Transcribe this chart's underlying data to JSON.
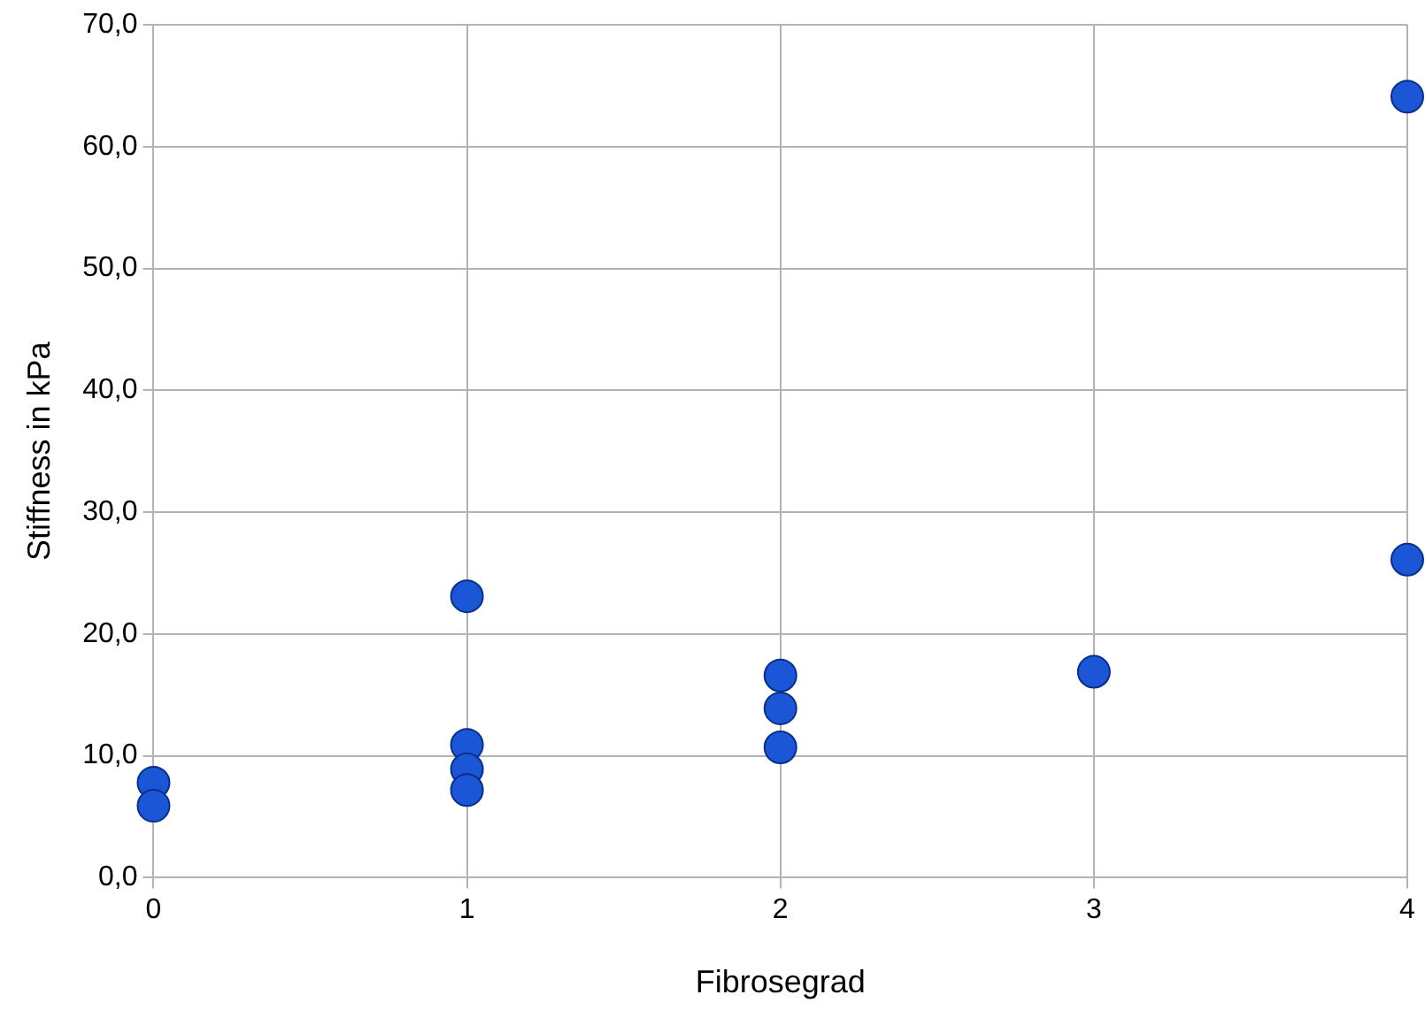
{
  "chart_data": {
    "type": "scatter",
    "xlabel": "Fibrosegrad",
    "ylabel": "Stiffness in kPa",
    "series": [
      {
        "color": "#1a56d6",
        "x": [
          0,
          0,
          1,
          1,
          1,
          1,
          2,
          2,
          2,
          3,
          4,
          4
        ],
        "values": [
          7.8,
          5.9,
          23.1,
          10.9,
          8.9,
          7.2,
          16.6,
          13.9,
          10.7,
          16.9,
          64.1,
          26.1
        ]
      }
    ],
    "xlim": [
      0,
      4
    ],
    "xticks": [
      0,
      1,
      2,
      3,
      4
    ],
    "ylim": [
      0,
      70
    ],
    "yticks": [
      {
        "value": 0,
        "label": "0,0"
      },
      {
        "value": 10,
        "label": "10,0"
      },
      {
        "value": 20,
        "label": "20,0"
      },
      {
        "value": 30,
        "label": "30,0"
      },
      {
        "value": 40,
        "label": "40,0"
      },
      {
        "value": 50,
        "label": "50,0"
      },
      {
        "value": 60,
        "label": "60,0"
      },
      {
        "value": 70,
        "label": "70,0"
      }
    ],
    "grid": true,
    "marker": "circle",
    "legend": false
  }
}
